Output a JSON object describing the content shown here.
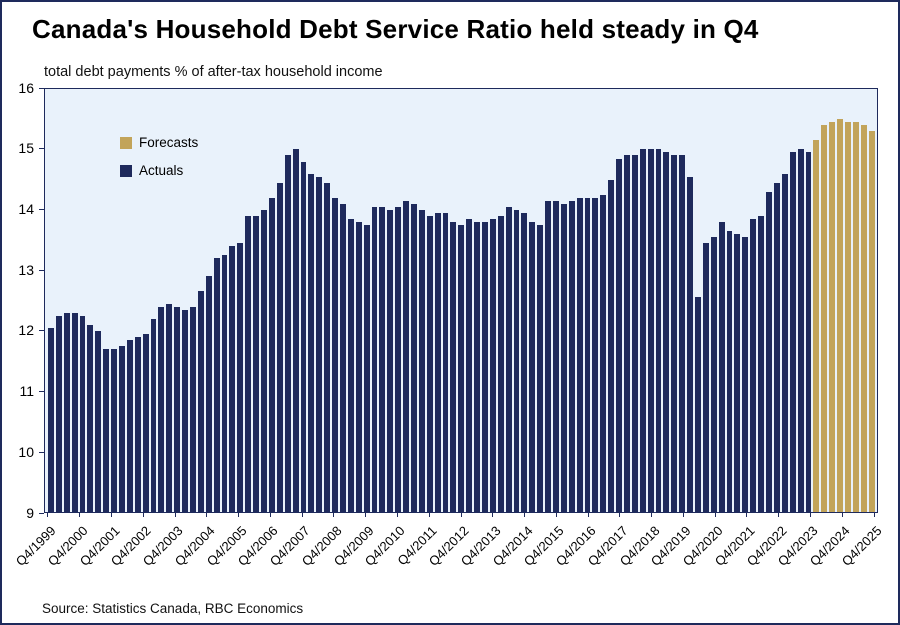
{
  "chart_data": {
    "type": "bar",
    "title": "Canada's Household Debt Service Ratio held steady in Q4",
    "subtitle": "total debt payments % of after-tax household income",
    "source": "Source: Statistics Canada, RBC Economics",
    "ylim": [
      9,
      16
    ],
    "yticks": [
      9,
      10,
      11,
      12,
      13,
      14,
      15,
      16
    ],
    "grid": false,
    "plot_background": "#e9f2fb",
    "frame_color": "#1e2a5c",
    "legend_position": "inside-upper-left",
    "legend": [
      {
        "label": "Forecasts",
        "color": "#c2a45a"
      },
      {
        "label": "Actuals",
        "color": "#1e2a5c"
      }
    ],
    "x_tick_filter": "Q4",
    "forecast_start_index": 97,
    "categories": [
      "Q4/1999",
      "Q1/2000",
      "Q2/2000",
      "Q3/2000",
      "Q4/2000",
      "Q1/2001",
      "Q2/2001",
      "Q3/2001",
      "Q4/2001",
      "Q1/2002",
      "Q2/2002",
      "Q3/2002",
      "Q4/2002",
      "Q1/2003",
      "Q2/2003",
      "Q3/2003",
      "Q4/2003",
      "Q1/2004",
      "Q2/2004",
      "Q3/2004",
      "Q4/2004",
      "Q1/2005",
      "Q2/2005",
      "Q3/2005",
      "Q4/2005",
      "Q1/2006",
      "Q2/2006",
      "Q3/2006",
      "Q4/2006",
      "Q1/2007",
      "Q2/2007",
      "Q3/2007",
      "Q4/2007",
      "Q1/2008",
      "Q2/2008",
      "Q3/2008",
      "Q4/2008",
      "Q1/2009",
      "Q2/2009",
      "Q3/2009",
      "Q4/2009",
      "Q1/2010",
      "Q2/2010",
      "Q3/2010",
      "Q4/2010",
      "Q1/2011",
      "Q2/2011",
      "Q3/2011",
      "Q4/2011",
      "Q1/2012",
      "Q2/2012",
      "Q3/2012",
      "Q4/2012",
      "Q1/2013",
      "Q2/2013",
      "Q3/2013",
      "Q4/2013",
      "Q1/2014",
      "Q2/2014",
      "Q3/2014",
      "Q4/2014",
      "Q1/2015",
      "Q2/2015",
      "Q3/2015",
      "Q4/2015",
      "Q1/2016",
      "Q2/2016",
      "Q3/2016",
      "Q4/2016",
      "Q1/2017",
      "Q2/2017",
      "Q3/2017",
      "Q4/2017",
      "Q1/2018",
      "Q2/2018",
      "Q3/2018",
      "Q4/2018",
      "Q1/2019",
      "Q2/2019",
      "Q3/2019",
      "Q4/2019",
      "Q1/2020",
      "Q2/2020",
      "Q3/2020",
      "Q4/2020",
      "Q1/2021",
      "Q2/2021",
      "Q3/2021",
      "Q4/2021",
      "Q1/2022",
      "Q2/2022",
      "Q3/2022",
      "Q4/2022",
      "Q1/2023",
      "Q2/2023",
      "Q3/2023",
      "Q4/2023",
      "Q1/2024",
      "Q2/2024",
      "Q3/2024",
      "Q4/2024",
      "Q1/2025",
      "Q2/2025",
      "Q3/2025",
      "Q4/2025"
    ],
    "values": [
      12.05,
      12.25,
      12.3,
      12.3,
      12.25,
      12.1,
      12.0,
      11.7,
      11.7,
      11.75,
      11.85,
      11.9,
      11.95,
      12.2,
      12.4,
      12.45,
      12.4,
      12.35,
      12.4,
      12.65,
      12.9,
      13.2,
      13.25,
      13.4,
      13.45,
      13.9,
      13.9,
      14.0,
      14.2,
      14.45,
      14.9,
      15.0,
      14.8,
      14.6,
      14.55,
      14.45,
      14.2,
      14.1,
      13.85,
      13.8,
      13.75,
      14.05,
      14.05,
      14.0,
      14.05,
      14.15,
      14.1,
      14.0,
      13.9,
      13.95,
      13.95,
      13.8,
      13.75,
      13.85,
      13.8,
      13.8,
      13.85,
      13.9,
      14.05,
      14.0,
      13.95,
      13.8,
      13.75,
      14.15,
      14.15,
      14.1,
      14.15,
      14.2,
      14.2,
      14.2,
      14.25,
      14.5,
      14.85,
      14.9,
      14.9,
      15.0,
      15.0,
      15.0,
      14.95,
      14.9,
      14.9,
      14.55,
      12.55,
      13.45,
      13.55,
      13.8,
      13.65,
      13.6,
      13.55,
      13.85,
      13.9,
      14.3,
      14.45,
      14.6,
      14.95,
      15.0,
      14.95,
      15.15,
      15.4,
      15.45,
      15.5,
      15.45,
      15.45,
      15.4,
      15.3
    ]
  }
}
